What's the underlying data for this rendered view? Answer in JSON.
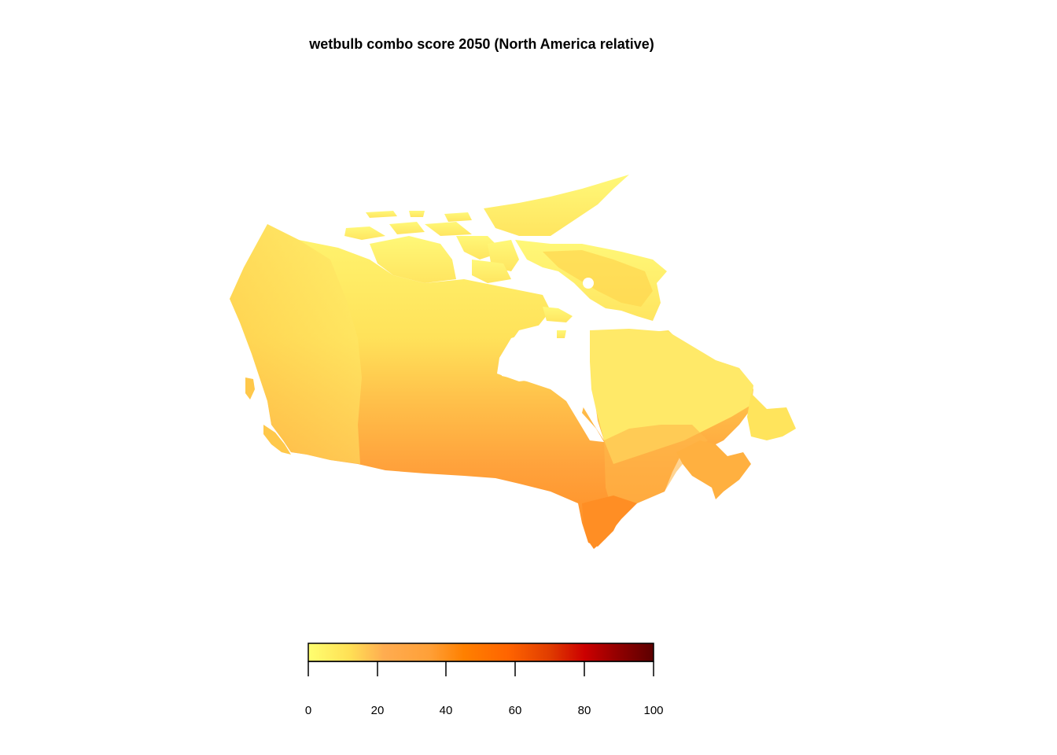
{
  "title": "wetbulb combo score 2050 (North America relative)",
  "legend": {
    "min": 0,
    "max": 100,
    "ticks": [
      "0",
      "20",
      "40",
      "60",
      "80",
      "100"
    ],
    "colors": [
      "#ffff66",
      "#ffd24d",
      "#ffa040",
      "#ff8c1a",
      "#ff6600",
      "#e63300",
      "#cc0000",
      "#990000",
      "#660000"
    ]
  },
  "map": {
    "region": "Canada",
    "palette": {
      "low": "#fff570",
      "mid_low": "#ffd84a",
      "mid": "#ffb840",
      "high": "#ff9a33",
      "higher": "#ff8a22"
    }
  }
}
